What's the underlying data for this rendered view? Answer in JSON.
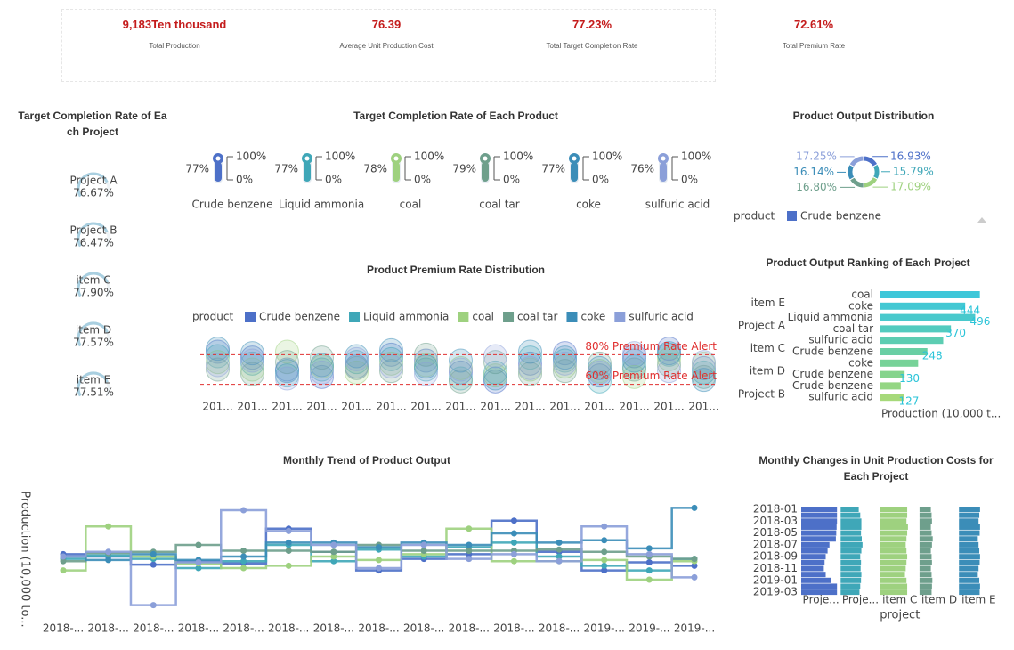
{
  "kpis": [
    {
      "value": "9,183Ten thousand",
      "label": "Total Production"
    },
    {
      "value": "76.39",
      "label": "Average Unit Production Cost"
    },
    {
      "value": "77.23%",
      "label": "Total Target Completion Rate"
    },
    {
      "value": "72.61%",
      "label": "Total Premium Rate"
    }
  ],
  "chart_data": [
    {
      "type": "gauge",
      "title": "Target Completion Rate of Each Project",
      "categories": [
        "Project A",
        "Project B",
        "item C",
        "item D",
        "item E"
      ],
      "values": [
        76.67,
        76.47,
        77.9,
        77.57,
        77.51
      ],
      "value_labels": [
        "76.67%",
        "76.47%",
        "77.90%",
        "77.57%",
        "77.51%"
      ],
      "ylim": [
        0,
        100
      ],
      "color": "#a9cfe0"
    },
    {
      "type": "thermometer",
      "title": "Target Completion Rate of Each Product",
      "categories": [
        "Crude benzene",
        "Liquid ammonia",
        "coal",
        "coal tar",
        "coke",
        "sulfuric acid"
      ],
      "values": [
        77,
        77,
        78,
        79,
        77,
        76
      ],
      "value_labels": [
        "77%",
        "77%",
        "78%",
        "79%",
        "77%",
        "76%"
      ],
      "colors": [
        "#4d70c8",
        "#3fa7b8",
        "#9ed17f",
        "#6e9f8c",
        "#3b8db8",
        "#8b9fd9"
      ],
      "ylim": [
        0,
        100
      ],
      "yticks": [
        {
          "value": 100,
          "label": "100%"
        },
        {
          "value": 0,
          "label": "0%"
        }
      ]
    },
    {
      "type": "pie",
      "title": "Product Output Distribution",
      "legend_title": "product",
      "categories": [
        "Crude benzene",
        "Liquid ammonia",
        "coal",
        "coal tar",
        "coke",
        "sulfuric acid"
      ],
      "values": [
        16.93,
        15.79,
        17.09,
        16.8,
        16.14,
        17.25
      ],
      "value_labels": [
        "16.93%",
        "15.79%",
        "17.09%",
        "16.80%",
        "16.14%",
        "17.25%"
      ],
      "colors": [
        "#4d70c8",
        "#3fa7b8",
        "#9ed17f",
        "#6e9f8c",
        "#3b8db8",
        "#8b9fd9"
      ]
    },
    {
      "type": "pictorial",
      "title": "Product Premium Rate Distribution",
      "legend_title": "product",
      "categories": [
        "201...",
        "201...",
        "201...",
        "201...",
        "201...",
        "201...",
        "201...",
        "201...",
        "201...",
        "201...",
        "201...",
        "201...",
        "201...",
        "201...",
        "201..."
      ],
      "series": [
        {
          "name": "Crude benzene",
          "color": "#4d70c8",
          "values": [
            82,
            78,
            70,
            65,
            72,
            80,
            76,
            68,
            62,
            74,
            81,
            66,
            79,
            84,
            71
          ]
        },
        {
          "name": "Liquid ammonia",
          "color": "#3fa7b8",
          "values": [
            79,
            74,
            66,
            70,
            75,
            77,
            70,
            64,
            68,
            78,
            76,
            62,
            72,
            80,
            68
          ]
        },
        {
          "name": "coal",
          "color": "#9ed17f",
          "values": [
            75,
            70,
            82,
            72,
            68,
            74,
            73,
            71,
            66,
            70,
            72,
            69,
            65,
            77,
            74
          ]
        },
        {
          "name": "coal tar",
          "color": "#6e9f8c",
          "values": [
            70,
            67,
            75,
            78,
            71,
            69,
            80,
            62,
            75,
            67,
            69,
            74,
            70,
            73,
            65
          ]
        },
        {
          "name": "coke",
          "color": "#3b8db8",
          "values": [
            84,
            81,
            69,
            73,
            79,
            83,
            72,
            76,
            64,
            82,
            78,
            71,
            76,
            81,
            63
          ]
        },
        {
          "name": "sulfuric acid",
          "color": "#8b9fd9",
          "values": [
            73,
            76,
            64,
            68,
            77,
            72,
            67,
            70,
            79,
            71,
            74,
            68,
            81,
            69,
            75
          ]
        }
      ],
      "ylim": [
        52,
        88
      ],
      "marklines": [
        {
          "value": 80,
          "label": "80% Premium Rate Alert"
        },
        {
          "value": 60,
          "label": "60% Premium Rate Alert"
        }
      ],
      "markline_color": "#e03030"
    },
    {
      "type": "rank",
      "title": "Product Output Ranking of Each Project",
      "groups": [
        "item E",
        "Project A",
        "item C",
        "item D",
        "Project B"
      ],
      "categories": [
        "coal",
        "coke",
        "Liquid ammonia",
        "coal tar",
        "sulfuric acid",
        "Crude benzene",
        "coke",
        "Crude benzene",
        "Crude benzene",
        "sulfuric acid"
      ],
      "values": [
        520,
        444,
        496,
        370,
        330,
        248,
        200,
        130,
        110,
        127
      ],
      "value_labels": [
        null,
        "444",
        "496",
        "370",
        null,
        "248",
        null,
        "130",
        null,
        "127"
      ],
      "colors": [
        "#3ec7d9",
        "#43c8d3",
        "#49c9cc",
        "#52cbbf",
        "#5ccdb2",
        "#69cfa4",
        "#77d298",
        "#85d48c",
        "#94d683",
        "#a6d97a"
      ],
      "label_color": "#2bc4d8",
      "x_label": "Production (10,000 t...",
      "xlim": [
        0,
        600
      ]
    },
    {
      "type": "steps",
      "title": "Monthly Trend of Product Output",
      "y_label": "Production (10,000 to...",
      "x": [
        "2018-...",
        "2018-...",
        "2018-...",
        "2018-...",
        "2018-...",
        "2018-...",
        "2018-...",
        "2018-...",
        "2018-...",
        "2018-...",
        "2018-...",
        "2018-...",
        "2019-...",
        "2019-...",
        "2019-..."
      ],
      "series": [
        {
          "name": "Crude benzene",
          "color": "#4d70c8",
          "values": [
            52,
            50,
            43,
            46,
            44,
            74,
            54,
            38,
            48,
            52,
            81,
            54,
            38,
            45,
            42
          ]
        },
        {
          "name": "Liquid ammonia",
          "color": "#3fa7b8",
          "values": [
            48,
            51,
            48,
            40,
            46,
            60,
            46,
            56,
            50,
            58,
            62,
            50,
            42,
            38,
            48
          ]
        },
        {
          "name": "coal",
          "color": "#9ed17f",
          "values": [
            38,
            76,
            50,
            44,
            40,
            42,
            50,
            47,
            52,
            74,
            46,
            46,
            47,
            30,
            46
          ]
        },
        {
          "name": "coal tar",
          "color": "#6e9f8c",
          "values": [
            46,
            53,
            54,
            60,
            55,
            55,
            54,
            60,
            55,
            55,
            55,
            56,
            54,
            50,
            48
          ]
        },
        {
          "name": "coke",
          "color": "#3b8db8",
          "values": [
            50,
            47,
            52,
            47,
            50,
            62,
            62,
            58,
            62,
            60,
            70,
            62,
            64,
            57,
            92
          ]
        },
        {
          "name": "sulfuric acid",
          "color": "#8b9fd9",
          "values": [
            50,
            54,
            8,
            45,
            90,
            72,
            60,
            40,
            60,
            48,
            52,
            46,
            76,
            52,
            32
          ]
        }
      ],
      "ylim": [
        0,
        100
      ]
    },
    {
      "type": "costbars",
      "title": "Monthly Changes in Unit Production Costs for Each Project",
      "x_label": "project",
      "categories": [
        "2018-01",
        null,
        "2018-03",
        null,
        "2018-05",
        null,
        "2018-07",
        null,
        "2018-09",
        null,
        "2018-11",
        null,
        "2019-01",
        null,
        "2019-03"
      ],
      "series": [
        {
          "name": "Proje...",
          "color": "#4d70c8",
          "values": [
            95,
            95,
            95,
            94,
            93,
            92,
            75,
            70,
            65,
            62,
            60,
            65,
            80,
            95,
            95
          ]
        },
        {
          "name": "Proje...",
          "color": "#3fa7b8",
          "values": [
            48,
            52,
            55,
            55,
            54,
            56,
            58,
            55,
            52,
            54,
            53,
            55,
            54,
            52,
            50
          ]
        },
        {
          "name": "item C",
          "color": "#9ed17f",
          "values": [
            72,
            72,
            70,
            74,
            72,
            70,
            68,
            70,
            72,
            70,
            68,
            66,
            70,
            72,
            72
          ]
        },
        {
          "name": "item D",
          "color": "#6e9f8c",
          "values": [
            30,
            32,
            33,
            30,
            32,
            35,
            33,
            30,
            32,
            33,
            30,
            32,
            34,
            33,
            32
          ]
        },
        {
          "name": "item E",
          "color": "#3b8db8",
          "values": [
            56,
            54,
            52,
            56,
            55,
            50,
            52,
            54,
            56,
            55,
            52,
            50,
            54,
            56,
            55
          ]
        }
      ],
      "xlim": [
        0,
        100
      ]
    }
  ]
}
